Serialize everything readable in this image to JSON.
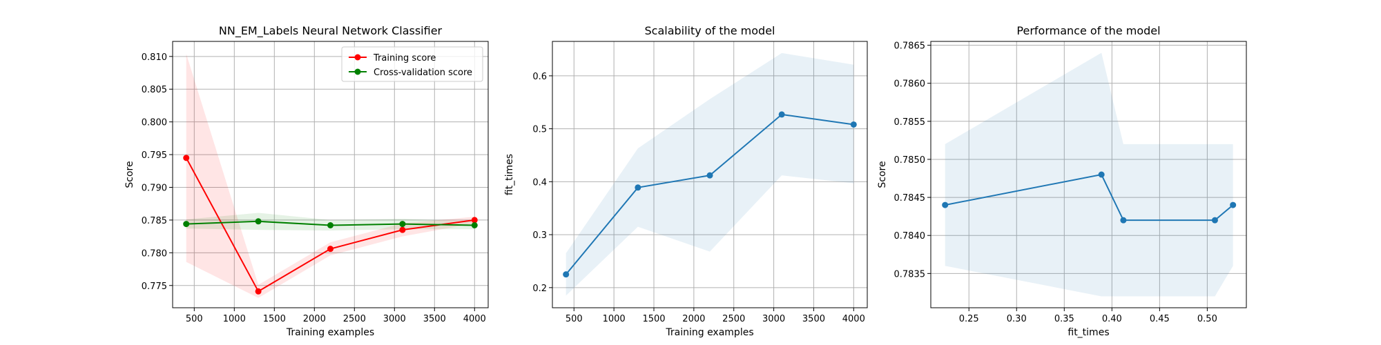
{
  "chart_data": [
    {
      "type": "line",
      "title": "NN_EM_Labels Neural Network Classifier",
      "xlabel": "Training examples",
      "ylabel": "Score",
      "xlim": [
        230,
        4170
      ],
      "ylim": [
        0.7716,
        0.8123
      ],
      "xticks": [
        500,
        1000,
        1500,
        2000,
        2500,
        3000,
        3500,
        4000
      ],
      "xtick_labels": [
        "500",
        "1000",
        "1500",
        "2000",
        "2500",
        "3000",
        "3500",
        "4000"
      ],
      "yticks": [
        0.775,
        0.78,
        0.785,
        0.79,
        0.795,
        0.8,
        0.805,
        0.81
      ],
      "ytick_labels": [
        "0.775",
        "0.780",
        "0.785",
        "0.790",
        "0.795",
        "0.800",
        "0.805",
        "0.810"
      ],
      "grid": true,
      "legend": "top-right",
      "x": [
        400,
        1300,
        2200,
        3100,
        4000
      ],
      "series": [
        {
          "name": "Training score",
          "color": "#ff0000",
          "band_color": "#ff0000",
          "values": [
            0.7945,
            0.7741,
            0.7806,
            0.7835,
            0.785
          ],
          "lower": [
            0.7786,
            0.7731,
            0.7796,
            0.7825,
            0.7845
          ],
          "upper": [
            0.8104,
            0.7751,
            0.7816,
            0.7845,
            0.7855
          ]
        },
        {
          "name": "Cross-validation score",
          "color": "#008000",
          "band_color": "#008000",
          "values": [
            0.7844,
            0.7848,
            0.7842,
            0.7844,
            0.7842
          ],
          "lower": [
            0.7837,
            0.7835,
            0.7834,
            0.7836,
            0.7836
          ],
          "upper": [
            0.7851,
            0.7861,
            0.785,
            0.7852,
            0.7848
          ]
        }
      ]
    },
    {
      "type": "line",
      "title": "Scalability of the model",
      "xlabel": "Training examples",
      "ylabel": "fit_times",
      "xlim": [
        230,
        4170
      ],
      "ylim": [
        0.162,
        0.665
      ],
      "xticks": [
        500,
        1000,
        1500,
        2000,
        2500,
        3000,
        3500,
        4000
      ],
      "xtick_labels": [
        "500",
        "1000",
        "1500",
        "2000",
        "2500",
        "3000",
        "3500",
        "4000"
      ],
      "yticks": [
        0.2,
        0.3,
        0.4,
        0.5,
        0.6
      ],
      "ytick_labels": [
        "0.2",
        "0.3",
        "0.4",
        "0.5",
        "0.6"
      ],
      "grid": true,
      "x": [
        400,
        1300,
        2200,
        3100,
        4000
      ],
      "series": [
        {
          "color": "#1f77b4",
          "band_color": "#1f77b4",
          "values": [
            0.225,
            0.389,
            0.412,
            0.527,
            0.508
          ],
          "lower": [
            0.185,
            0.315,
            0.268,
            0.412,
            0.397
          ],
          "upper": [
            0.265,
            0.463,
            0.556,
            0.643,
            0.621
          ]
        }
      ]
    },
    {
      "type": "line",
      "title": "Performance of the model",
      "xlabel": "fit_times",
      "ylabel": "Score",
      "xlim": [
        0.21,
        0.541
      ],
      "ylim": [
        0.78305,
        0.78655
      ],
      "xticks": [
        0.25,
        0.3,
        0.35,
        0.4,
        0.45,
        0.5
      ],
      "xtick_labels": [
        "0.25",
        "0.30",
        "0.35",
        "0.40",
        "0.45",
        "0.50"
      ],
      "yticks": [
        0.7835,
        0.784,
        0.7845,
        0.785,
        0.7855,
        0.786,
        0.7865
      ],
      "ytick_labels": [
        "0.7835",
        "0.7840",
        "0.7845",
        "0.7850",
        "0.7855",
        "0.7860",
        "0.7865"
      ],
      "grid": true,
      "series": [
        {
          "color": "#1f77b4",
          "band_color": "#1f77b4",
          "x": [
            0.225,
            0.389,
            0.412,
            0.508,
            0.527
          ],
          "values": [
            0.7844,
            0.7848,
            0.7842,
            0.7842,
            0.7844
          ],
          "lower": [
            0.7836,
            0.7832,
            0.7832,
            0.7832,
            0.7836
          ],
          "upper": [
            0.7852,
            0.7864,
            0.7852,
            0.7852,
            0.7852
          ]
        }
      ]
    }
  ]
}
